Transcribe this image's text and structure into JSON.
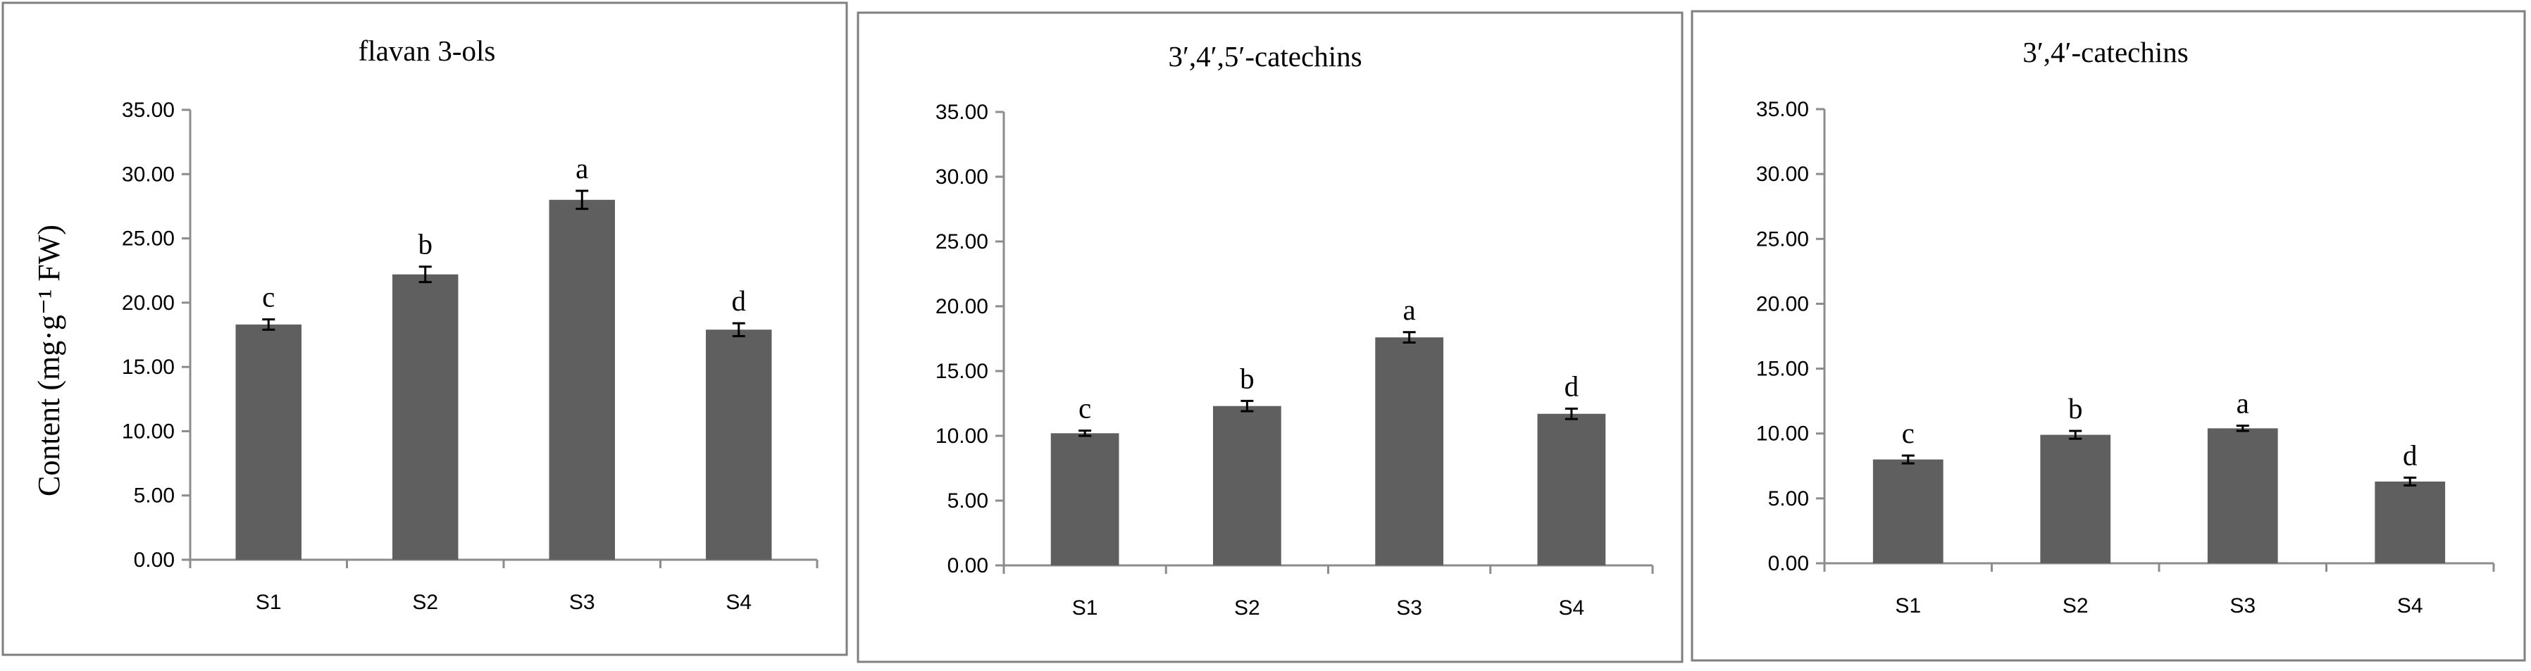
{
  "colors": {
    "bar": "#5f5f5f",
    "axis": "#8c8c8c",
    "frame": "#7f7f7f"
  },
  "chart_data": [
    {
      "type": "bar",
      "title": "flavan 3-ols",
      "ylabel": "Content (mg·g⁻¹ FW)",
      "categories": [
        "S1",
        "S2",
        "S3",
        "S4"
      ],
      "values": [
        18.3,
        22.2,
        28.0,
        17.9
      ],
      "errors": [
        0.4,
        0.6,
        0.7,
        0.5
      ],
      "significance": [
        "c",
        "b",
        "a",
        "d"
      ],
      "ylim": [
        0,
        35
      ],
      "yticks": [
        "0.00",
        "5.00",
        "10.00",
        "15.00",
        "20.00",
        "25.00",
        "30.00",
        "35.00"
      ],
      "grid": false
    },
    {
      "type": "bar",
      "title": "3′,4′,5′-catechins",
      "ylabel": "",
      "categories": [
        "S1",
        "S2",
        "S3",
        "S4"
      ],
      "values": [
        10.2,
        12.3,
        17.6,
        11.7
      ],
      "errors": [
        0.2,
        0.4,
        0.4,
        0.4
      ],
      "significance": [
        "c",
        "b",
        "a",
        "d"
      ],
      "ylim": [
        0,
        35
      ],
      "yticks": [
        "0.00",
        "5.00",
        "10.00",
        "15.00",
        "20.00",
        "25.00",
        "30.00",
        "35.00"
      ],
      "grid": false
    },
    {
      "type": "bar",
      "title": "3′,4′-catechins",
      "ylabel": "",
      "categories": [
        "S1",
        "S2",
        "S3",
        "S4"
      ],
      "values": [
        8.0,
        9.9,
        10.4,
        6.3
      ],
      "errors": [
        0.3,
        0.3,
        0.2,
        0.3
      ],
      "significance": [
        "c",
        "b",
        "a",
        "d"
      ],
      "ylim": [
        0,
        35
      ],
      "yticks": [
        "0.00",
        "5.00",
        "10.00",
        "15.00",
        "20.00",
        "25.00",
        "30.00",
        "35.00"
      ],
      "grid": false
    }
  ]
}
